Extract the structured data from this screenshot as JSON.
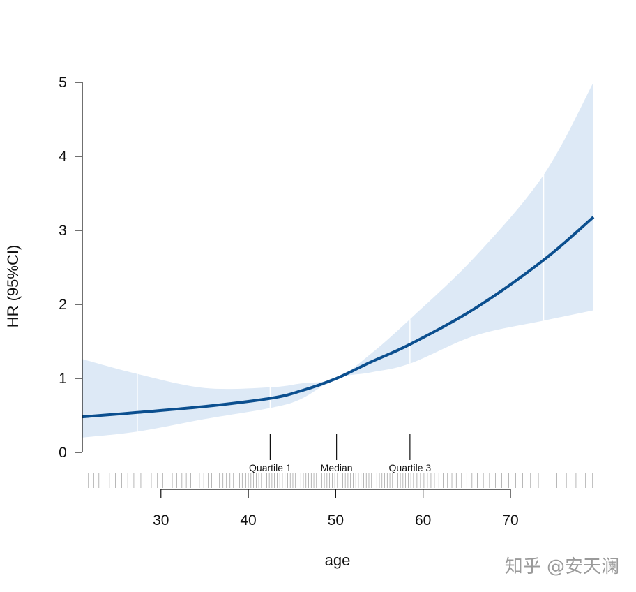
{
  "chart_data": {
    "type": "line",
    "title": "",
    "xlabel": "age",
    "ylabel": "HR (95%CI)",
    "xlim": [
      21,
      79.5
    ],
    "ylim": [
      0,
      5
    ],
    "x_ticks": [
      30,
      40,
      50,
      60,
      70
    ],
    "y_ticks": [
      0,
      1,
      2,
      3,
      4,
      5
    ],
    "grid": false,
    "colors": {
      "line": "#0b4f8f",
      "band": "#dde9f6",
      "rug": "#555555"
    },
    "series": [
      {
        "type": "line",
        "x": [
          21,
          27.3,
          35,
          42.5,
          46,
          50.1,
          54,
          58.5,
          66,
          73.8,
          79.5
        ],
        "y": [
          0.48,
          0.54,
          0.62,
          0.73,
          0.83,
          1.0,
          1.22,
          1.46,
          1.95,
          2.6,
          3.18
        ]
      },
      {
        "type": "area",
        "x": [
          21,
          27.3,
          35,
          42.5,
          46,
          50.1,
          54,
          58.5,
          66,
          73.8,
          79.5
        ],
        "lower": [
          0.2,
          0.28,
          0.45,
          0.6,
          0.72,
          1.0,
          1.08,
          1.2,
          1.58,
          1.78,
          1.92
        ],
        "upper": [
          1.26,
          1.06,
          0.87,
          0.88,
          0.93,
          1.0,
          1.33,
          1.8,
          2.65,
          3.75,
          5.0
        ]
      }
    ],
    "reference_points": [
      27.3,
      42.5,
      58.5,
      73.8
    ],
    "annotations": [
      {
        "label": "Quartile 1",
        "x": 42.5
      },
      {
        "label": "Median",
        "x": 50.1
      },
      {
        "label": "Quartile 3",
        "x": 58.5
      }
    ],
    "rug": [
      21.2,
      21.7,
      22.3,
      22.9,
      23.6,
      24.1,
      24.8,
      25.5,
      26.2,
      26.9,
      27.7,
      28.3,
      28.9,
      29.6,
      30.2,
      30.7,
      31.3,
      31.8,
      32.4,
      32.9,
      33.4,
      33.9,
      34.4,
      34.9,
      35.4,
      35.8,
      36.2,
      36.7,
      37.1,
      37.5,
      37.9,
      38.3,
      38.6,
      39.0,
      39.3,
      39.7,
      40.0,
      40.3,
      40.6,
      40.9,
      41.2,
      41.5,
      41.8,
      42.1,
      42.4,
      42.7,
      43.0,
      43.3,
      43.6,
      43.9,
      44.2,
      44.5,
      44.8,
      45.1,
      45.4,
      45.7,
      46.0,
      46.3,
      46.6,
      46.9,
      47.2,
      47.5,
      47.8,
      48.1,
      48.4,
      48.7,
      49.0,
      49.3,
      49.6,
      49.9,
      50.2,
      50.5,
      50.8,
      51.1,
      51.4,
      51.7,
      52.0,
      52.3,
      52.6,
      52.9,
      53.2,
      53.5,
      53.8,
      54.1,
      54.4,
      54.7,
      55.0,
      55.3,
      55.6,
      55.9,
      56.2,
      56.5,
      56.8,
      57.1,
      57.4,
      57.7,
      58.0,
      58.3,
      58.6,
      58.9,
      59.3,
      59.7,
      60.1,
      60.5,
      60.9,
      61.3,
      61.8,
      62.3,
      62.8,
      63.3,
      63.8,
      64.4,
      65.0,
      65.6,
      66.2,
      66.9,
      67.6,
      68.3,
      69.0,
      69.8,
      70.6,
      71.4,
      72.3,
      73.2,
      74.2,
      75.3,
      76.4,
      77.5,
      78.6,
      79.4
    ]
  },
  "watermark": "知乎 @安天澜"
}
